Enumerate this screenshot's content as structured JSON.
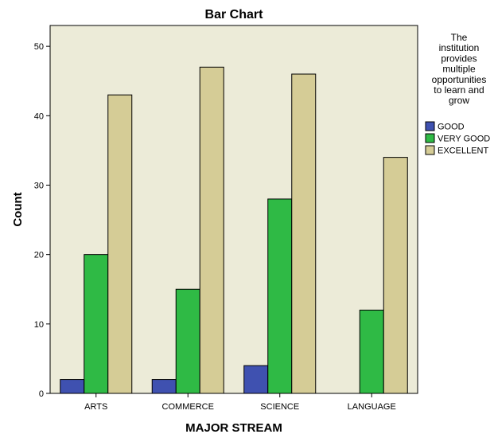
{
  "chart_data": {
    "type": "bar",
    "title": "Bar Chart",
    "xlabel": "MAJOR STREAM",
    "ylabel": "Count",
    "categories": [
      "ARTS",
      "COMMERCE",
      "SCIENCE",
      "LANGUAGE"
    ],
    "series": [
      {
        "name": "GOOD",
        "values": [
          2,
          2,
          4,
          0
        ],
        "color": "#3f51b0"
      },
      {
        "name": "VERY GOOD",
        "values": [
          20,
          15,
          28,
          12
        ],
        "color": "#2fba45"
      },
      {
        "name": "EXCELLENT",
        "values": [
          43,
          47,
          46,
          34
        ],
        "color": "#d5cc96"
      }
    ],
    "ylim": [
      0,
      53
    ],
    "yticks": [
      0,
      10,
      20,
      30,
      40,
      50
    ],
    "grid": false,
    "legend": {
      "title_lines": [
        "The",
        "institution",
        "provides",
        "multiple",
        "opportunities",
        "to learn and",
        "grow"
      ],
      "position": "right"
    },
    "plot_background": "#ecebd8"
  }
}
